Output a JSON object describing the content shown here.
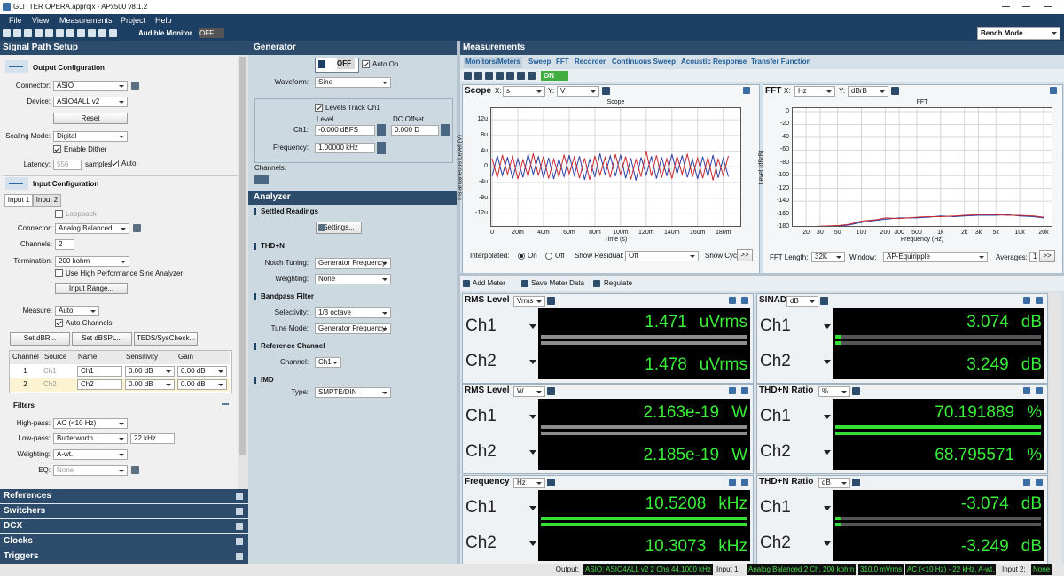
{
  "title_bar": {
    "title": "GLITTER OPERA.approjx - APx500 v8.1.2"
  },
  "menu": [
    "File",
    "View",
    "Measurements",
    "Project",
    "Help"
  ],
  "toolbar": {
    "audible_monitor": "Audible Monitor",
    "monitor_state": "OFF",
    "bench_mode": "Bench Mode"
  },
  "signal_path": {
    "title": "Signal Path Setup",
    "output_config": "Output Configuration",
    "connector_label": "Connector:",
    "connector": "ASIO",
    "device_label": "Device:",
    "device": "ASIO4ALL v2",
    "reset": "Reset",
    "scaling_label": "Scaling Mode:",
    "scaling": "Digital",
    "dither": "Enable Dither",
    "latency_label": "Latency:",
    "latency": "556",
    "latency_unit": "samples",
    "auto": "Auto",
    "input_config": "Input Configuration",
    "tabs": [
      "Input 1",
      "Input 2"
    ],
    "loopback": "Loopback",
    "in_connector_label": "Connector:",
    "in_connector": "Analog Balanced",
    "channels_label": "Channels:",
    "channels": "2",
    "termination_label": "Termination:",
    "termination": "200 kohm",
    "hp_sine": "Use High Performance Sine Analyzer",
    "input_range": "Input Range...",
    "measure_label": "Measure:",
    "measure": "Auto",
    "auto_channels": "Auto Channels",
    "buttons": [
      "Set dBR...",
      "Set dBSPL...",
      "TEDS/SysCheck..."
    ],
    "table": {
      "header": [
        "Channel",
        "Source",
        "Name",
        "Sensitivity",
        "Gain"
      ],
      "rows": [
        [
          "1",
          "Ch1",
          "Ch1",
          "0.00 dB",
          "0.00 dB"
        ],
        [
          "2",
          "Ch2",
          "Ch2",
          "0.00 dB",
          "0.00 dB"
        ]
      ]
    },
    "filters": "Filters",
    "highpass_label": "High-pass:",
    "highpass": "AC (<10 Hz)",
    "lowpass_label": "Low-pass:",
    "lowpass": "Butterworth",
    "lowpass_freq": "22 kHz",
    "weighting_label": "Weighting:",
    "weighting": "A-wt.",
    "eq_label": "EQ:",
    "eq": "None",
    "sections": [
      "References",
      "Switchers",
      "DCX",
      "Clocks",
      "Triggers"
    ]
  },
  "generator": {
    "title": "Generator",
    "state": "OFF",
    "auto_on": "Auto On",
    "waveform_label": "Waveform:",
    "waveform": "Sine",
    "levels_track": "Levels Track Ch1",
    "level_header": "Level",
    "dc_offset_header": "DC Offset",
    "ch1_label": "Ch1:",
    "ch1_level": "-0.000 dBFS",
    "ch1_dc_offset": "0.000 D",
    "frequency_label": "Frequency:",
    "frequency": "1.00000 kHz",
    "channels_label": "Channels:"
  },
  "analyzer": {
    "title": "Analyzer",
    "settled_readings": "Settled Readings",
    "settings": "Settings...",
    "thdn": "THD+N",
    "notch_tuning_label": "Notch Tuning:",
    "notch_tuning": "Generator Frequency",
    "weighting_label": "Weighting:",
    "weighting": "None",
    "bandpass": "Bandpass Filter",
    "selectivity_label": "Selectivity:",
    "selectivity": "1/3 octave",
    "tune_mode_label": "Tune Mode:",
    "tune_mode": "Generator Frequency",
    "reference_channel": "Reference Channel",
    "channel_label": "Channel:",
    "channel": "Ch1",
    "imd": "IMD",
    "type_label": "Type:",
    "type": "SMPTE/DIN"
  },
  "measurements": {
    "title": "Measurements",
    "tabs": [
      "Monitors/Meters",
      "Sweep",
      "FFT",
      "Recorder",
      "Continuous Sweep",
      "Acoustic Response",
      "Transfer Function"
    ],
    "state": "ON",
    "scope": {
      "panel_title": "Scope",
      "x_label": "X:",
      "x_unit": "s",
      "y_label": "Y:",
      "y_unit": "V",
      "chart": {
        "type": "line",
        "title": "Scope",
        "x_axis_label": "Time (s)",
        "y_axis_label": "Instantaneous Level (V)",
        "xlim": [
          -0.0014,
          0.194
        ],
        "ylim": [
          -1.53e-05,
          1.52e-05
        ],
        "xticks": [
          0,
          {
            "value": 0.02,
            "label": "20m"
          },
          {
            "value": 0.04,
            "label": "40m"
          },
          {
            "value": 0.06,
            "label": "60m"
          },
          {
            "value": 0.08,
            "label": "80m"
          },
          {
            "value": 0.1,
            "label": "100m"
          },
          {
            "value": 0.12,
            "label": "120m"
          },
          {
            "value": 0.14,
            "label": "140m"
          },
          {
            "value": 0.16,
            "label": "160m"
          },
          {
            "value": 0.18,
            "label": "180m"
          }
        ],
        "yticks": [
          {
            "value": 1.2e-05,
            "label": "12u"
          },
          {
            "value": 8e-06,
            "label": "8u"
          },
          {
            "value": 4e-06,
            "label": "4u"
          },
          0,
          {
            "value": -4e-06,
            "label": "-4u"
          },
          {
            "value": -8e-06,
            "label": "-8u"
          },
          {
            "value": -1.2e-05,
            "label": "-12u"
          }
        ],
        "grid": true,
        "x": [
          0,
          0.004,
          0.008,
          0.012,
          0.016,
          0.02,
          0.024,
          0.028,
          0.032,
          0.036,
          0.04,
          0.044,
          0.048,
          0.052,
          0.056,
          0.06,
          0.064,
          0.068,
          0.072,
          0.076,
          0.08,
          0.084,
          0.088,
          0.092,
          0.096,
          0.1,
          0.104,
          0.108,
          0.112,
          0.116,
          0.12,
          0.124,
          0.128,
          0.132,
          0.136,
          0.14,
          0.144,
          0.148,
          0.152,
          0.156,
          0.16,
          0.164,
          0.168,
          0.172,
          0.176,
          0.18,
          0.184
        ],
        "series": [
          {
            "color": "#2b3fa6",
            "values": [
              -2.4e-06,
              2.9e-06,
              -2.2e-06,
              2.5e-06,
              -3e-06,
              2.1e-06,
              -2.7e-06,
              3.2e-06,
              -1.9e-06,
              2.6e-06,
              -2.8e-06,
              2.3e-06,
              -3.1e-06,
              2e-06,
              -2.5e-06,
              3e-06,
              -2.2e-06,
              2.7e-06,
              -3.3e-06,
              1.9e-06,
              -2.6e-06,
              3.4e-06,
              -2e-06,
              2.8e-06,
              -2.4e-06,
              3.1e-06,
              -2.9e-06,
              2.2e-06,
              -3.5e-06,
              2.4e-06,
              -2.1e-06,
              2.7e-06,
              -3e-06,
              2.5e-06,
              -2.3e-06,
              3.2e-06,
              -1.8e-06,
              2.9e-06,
              -2.7e-06,
              2e-06,
              -3.1e-06,
              2.6e-06,
              -2.4e-06,
              3e-06,
              -2.8e-06,
              2.2e-06,
              -2.5e-06
            ]
          },
          {
            "color": "#c8282e",
            "values": [
              2.1e-06,
              -2.8e-06,
              3e-06,
              -1.9e-06,
              2.6e-06,
              -3.1e-06,
              1.8e-06,
              -2.4e-06,
              3.4e-06,
              -2.2e-06,
              2.7e-06,
              -3e-06,
              2e-06,
              -2.6e-06,
              3.1e-06,
              -1.8e-06,
              2.5e-06,
              -2.9e-06,
              2.2e-06,
              -3.3e-06,
              2.8e-06,
              -2.1e-06,
              2.4e-06,
              -2.7e-06,
              3.2e-06,
              -2e-06,
              2.6e-06,
              -3.2e-06,
              1.9e-06,
              -2.5e-06,
              4.1e-06,
              -2.3e-06,
              2.9e-06,
              -2.8e-06,
              2.1e-06,
              -3e-06,
              2.7e-06,
              -1.9e-06,
              3.3e-06,
              -2.6e-06,
              2.3e-06,
              -2.9e-06,
              2.5e-06,
              -3.4e-06,
              2e-06,
              -2.2e-06,
              2.8e-06
            ]
          }
        ]
      },
      "interpolated_label": "Interpolated:",
      "on": "On",
      "off": "Off",
      "show_residual_label": "Show Residual:",
      "show_residual": "Off",
      "show_cycles": "Show Cyc",
      "more": ">>"
    },
    "fft": {
      "panel_title": "FFT",
      "x_label": "X:",
      "x_unit": "Hz",
      "y_label": "Y:",
      "y_unit": "dBrB",
      "chart": {
        "type": "line",
        "title": "FFT",
        "x_axis_label": "Frequency (Hz)",
        "y_axis_label": "Level (dBrB)",
        "x_scale": "log",
        "xlim": [
          13.2,
          25900
        ],
        "ylim": [
          -180,
          7
        ],
        "xticks": [
          20,
          30,
          50,
          100,
          200,
          300,
          500,
          {
            "value": 1000,
            "label": "1k"
          },
          {
            "value": 2000,
            "label": "2k"
          },
          {
            "value": 3000,
            "label": "3k"
          },
          {
            "value": 5000,
            "label": "5k"
          },
          {
            "value": 10000,
            "label": "10k"
          },
          {
            "value": 20000,
            "label": "20k"
          }
        ],
        "yticks": [
          0,
          -20,
          -40,
          -60,
          -80,
          -100,
          -120,
          -140,
          -160,
          -180
        ],
        "grid": true,
        "x": [
          20,
          30,
          50,
          70,
          100,
          150,
          200,
          300,
          500,
          700,
          1000,
          1500,
          2000,
          3000,
          5000,
          7000,
          10000,
          15000,
          20000
        ],
        "series": [
          {
            "color": "#2b3fa6",
            "values": [
              -180,
              -180,
              -179,
              -177,
              -173,
              -170,
              -168,
              -166,
              -166,
              -165,
              -163,
              -164,
              -163,
              -162,
              -162,
              -161,
              -163,
              -164,
              -166
            ]
          },
          {
            "color": "#c8282e",
            "values": [
              -180,
              -179,
              -178,
              -176,
              -171,
              -169,
              -166,
              -167,
              -165,
              -164,
              -164,
              -163,
              -162,
              -161,
              -161,
              -162,
              -162,
              -163,
              -165
            ]
          }
        ]
      },
      "fft_length_label": "FFT Length:",
      "fft_length": "32K",
      "window_label": "Window:",
      "window": "AP-Equiripple",
      "averages_label": "Averages:",
      "averages": "1",
      "more": ">>"
    },
    "meter_toolbar": [
      "Add Meter",
      "Save Meter Data",
      "Regulate"
    ],
    "meters": [
      {
        "title": "RMS Level",
        "unit": "Vrms",
        "readings": [
          {
            "channel": "Ch1",
            "value": 1.471,
            "unit": "uVrms"
          },
          {
            "channel": "Ch2",
            "value": 1.478,
            "unit": "uVrms"
          }
        ]
      },
      {
        "title": "SINAD",
        "unit": "dB",
        "readings": [
          {
            "channel": "Ch1",
            "value": 3.074,
            "unit": "dB"
          },
          {
            "channel": "Ch2",
            "value": 3.249,
            "unit": "dB"
          }
        ]
      },
      {
        "title": "RMS Level",
        "unit": "W",
        "readings": [
          {
            "channel": "Ch1",
            "value": 2.163e-19,
            "unit": "W"
          },
          {
            "channel": "Ch2",
            "value": 2.185e-19,
            "unit": "W"
          }
        ]
      },
      {
        "title": "THD+N Ratio",
        "unit": "%",
        "readings": [
          {
            "channel": "Ch1",
            "value": 70.191889,
            "unit": "%"
          },
          {
            "channel": "Ch2",
            "value": 68.795571,
            "unit": "%"
          }
        ]
      },
      {
        "title": "Frequency",
        "unit": "Hz",
        "readings": [
          {
            "channel": "Ch1",
            "value": 10.5208,
            "unit": "kHz"
          },
          {
            "channel": "Ch2",
            "value": 10.3073,
            "unit": "kHz"
          }
        ]
      },
      {
        "title": "THD+N Ratio",
        "unit": "dB",
        "readings": [
          {
            "channel": "Ch1",
            "value": -3.074,
            "unit": "dB"
          },
          {
            "channel": "Ch2",
            "value": -3.249,
            "unit": "dB"
          }
        ]
      }
    ]
  },
  "status_bar": {
    "output_label": "Output:",
    "output": "ASIO: ASIO4ALL v2 2 Chs",
    "sample_rate": "44.1000 kHz",
    "input1_label": "Input 1:",
    "input1": "Analog Balanced 2 Ch, 200 kohm",
    "input1_range": "310.0 mVrms",
    "input1_filter": "AC (<10 Hz) - 22 kHz, A-wt.",
    "input2_label": "Input 2:",
    "input2": "None"
  }
}
